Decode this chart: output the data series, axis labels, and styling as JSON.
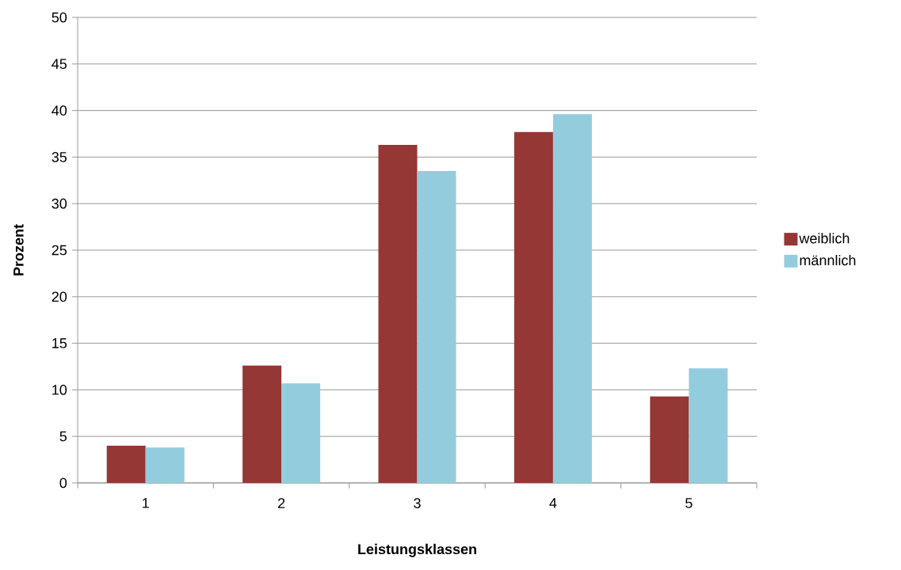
{
  "chart_data": {
    "type": "bar",
    "xlabel": "Leistungsklassen",
    "ylabel": "Prozent",
    "categories": [
      "1",
      "2",
      "3",
      "4",
      "5"
    ],
    "series": [
      {
        "name": "weiblich",
        "color": "#953735",
        "values": [
          4.0,
          12.6,
          36.3,
          37.7,
          9.3
        ]
      },
      {
        "name": "männlich",
        "color": "#93cddd",
        "values": [
          3.8,
          10.7,
          33.5,
          39.6,
          12.3
        ]
      }
    ],
    "ylim": [
      0,
      50
    ],
    "yticks": [
      0,
      5,
      10,
      15,
      20,
      25,
      30,
      35,
      40,
      45,
      50
    ],
    "grid": "y",
    "legend": "right"
  }
}
